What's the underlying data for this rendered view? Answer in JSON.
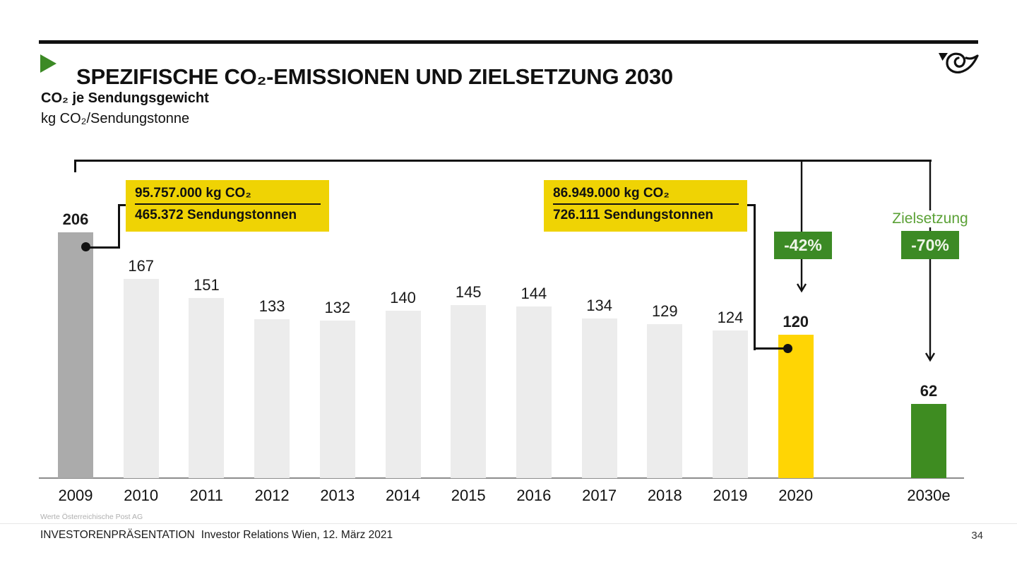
{
  "slide": {
    "title": "SPEZIFISCHE CO₂-EMISSIONEN UND ZIELSETZUNG 2030",
    "subtitle_bold": "CO₂ je Sendungsgewicht",
    "subtitle_unit": "kg CO₂/Sendungstonne"
  },
  "callouts": {
    "left": {
      "numerator": "95.757.000 kg CO₂",
      "denominator": "465.372 Sendungstonnen"
    },
    "right": {
      "numerator": "86.949.000 kg CO₂",
      "denominator": "726.111 Sendungstonnen"
    }
  },
  "annotations": {
    "reduction_2020": "-42%",
    "target_caption": "Zielsetzung",
    "reduction_2030": "-70%"
  },
  "chart_data": {
    "type": "bar",
    "categories": [
      "2009",
      "2010",
      "2011",
      "2012",
      "2013",
      "2014",
      "2015",
      "2016",
      "2017",
      "2018",
      "2019",
      "2020",
      "2030e"
    ],
    "values": [
      206,
      167,
      151,
      133,
      132,
      140,
      145,
      144,
      134,
      129,
      124,
      120,
      62
    ],
    "bar_colors": [
      "#ABABAB",
      "#ECECEC",
      "#ECECEC",
      "#ECECEC",
      "#ECECEC",
      "#ECECEC",
      "#ECECEC",
      "#ECECEC",
      "#ECECEC",
      "#ECECEC",
      "#ECECEC",
      "#FFD504",
      "#3E8C21"
    ],
    "bold_value_indices": [
      0,
      11,
      12
    ],
    "title": "CO₂ je Sendungsgewicht",
    "ylabel": "kg CO₂/Sendungstonne",
    "ylim": [
      0,
      220
    ],
    "grid": false,
    "legend": "none",
    "callout_notes": [
      "2009: 95.757.000 kg CO₂ / 465.372 Sendungstonnen",
      "2020: 86.949.000 kg CO₂ / 726.111 Sendungstonnen",
      "2020 vs 2009: -42%",
      "Zielsetzung 2030: -70%"
    ]
  },
  "footer": {
    "source_note": "Werte Österreichische Post AG",
    "presentation_label": "INVESTORENPRÄSENTATION",
    "event_details": "Investor Relations Wien, 12. März 2021",
    "page_number": "34"
  },
  "colors": {
    "post_green": "#3C8A25",
    "target_text_green": "#5BA136",
    "callout_yellow": "#EFD304",
    "bar_yellow_2020": "#FFD504",
    "bar_gray_2009": "#ABABAB",
    "bar_light_gray": "#ECECEC"
  }
}
